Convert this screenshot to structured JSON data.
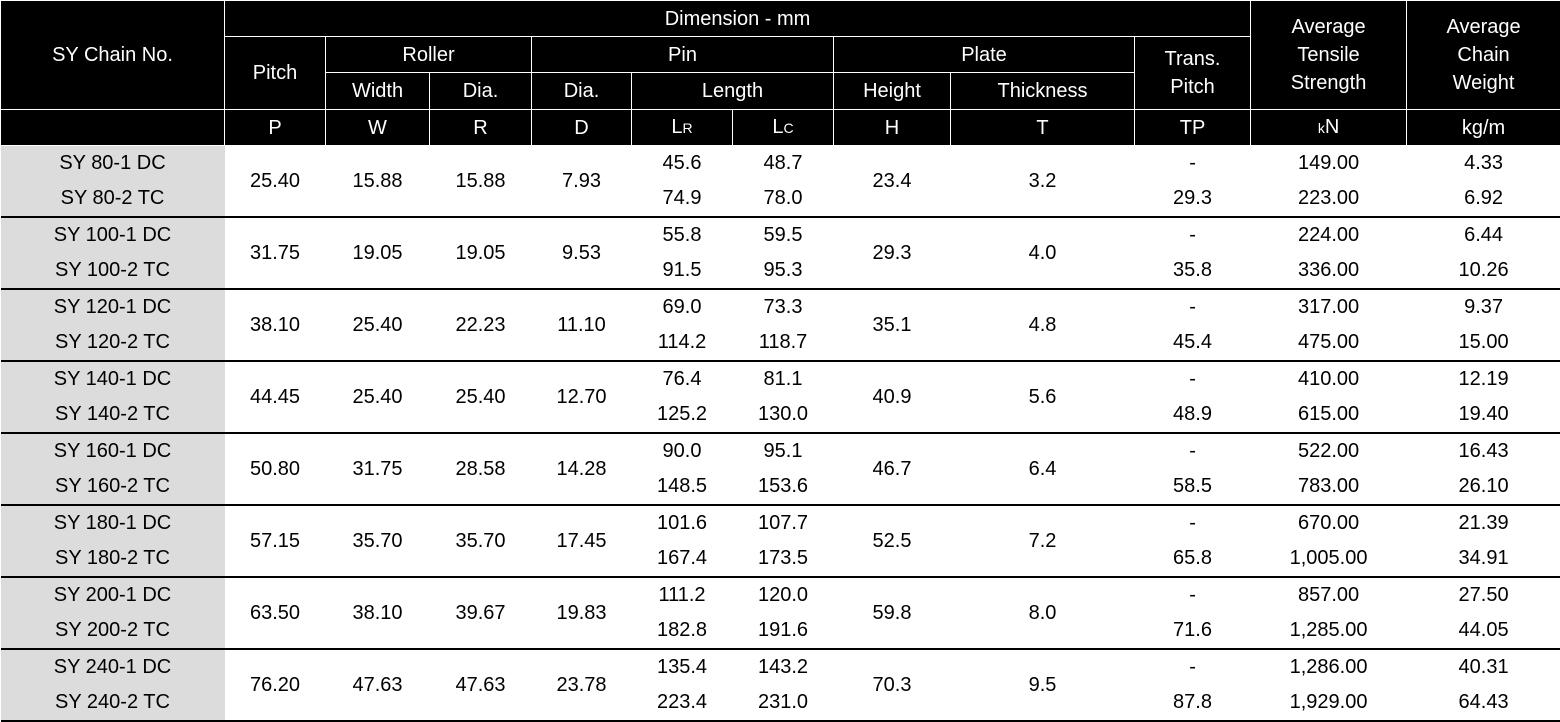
{
  "header": {
    "chain_no": "SY Chain No.",
    "dimension": "Dimension - mm",
    "pitch": "Pitch",
    "roller": "Roller",
    "pin": "Pin",
    "plate": "Plate",
    "trans_pitch_line1": "Trans.",
    "trans_pitch_line2": "Pitch",
    "tensile_line1": "Average",
    "tensile_line2": "Tensile",
    "tensile_line3": "Strength",
    "weight_line1": "Average",
    "weight_line2": "Chain",
    "weight_line3": "Weight",
    "roller_width": "Width",
    "roller_dia": "Dia.",
    "pin_dia": "Dia.",
    "pin_length": "Length",
    "plate_height": "Height",
    "plate_thickness": "Thickness",
    "sym_p": "P",
    "sym_w": "W",
    "sym_r": "R",
    "sym_d": "D",
    "sym_lr_main": "L",
    "sym_lr_sub": "R",
    "sym_lc_main": "L",
    "sym_lc_sub": "C",
    "sym_h": "H",
    "sym_t": "T",
    "sym_tp": "TP",
    "unit_kn_k": "k",
    "unit_kn_n": "N",
    "unit_weight": "kg/m"
  },
  "rows": [
    {
      "dc": "SY 80-1 DC",
      "tc": "SY 80-2 TC",
      "p": "25.40",
      "w": "15.88",
      "r": "15.88",
      "d": "7.93",
      "lr1": "45.6",
      "lc1": "48.7",
      "lr2": "74.9",
      "lc2": "78.0",
      "h": "23.4",
      "t": "3.2",
      "tp1": "-",
      "tp2": "29.3",
      "ts1": "149.00",
      "ts2": "223.00",
      "wt1": "4.33",
      "wt2": "6.92"
    },
    {
      "dc": "SY 100-1 DC",
      "tc": "SY 100-2 TC",
      "p": "31.75",
      "w": "19.05",
      "r": "19.05",
      "d": "9.53",
      "lr1": "55.8",
      "lc1": "59.5",
      "lr2": "91.5",
      "lc2": "95.3",
      "h": "29.3",
      "t": "4.0",
      "tp1": "-",
      "tp2": "35.8",
      "ts1": "224.00",
      "ts2": "336.00",
      "wt1": "6.44",
      "wt2": "10.26"
    },
    {
      "dc": "SY 120-1 DC",
      "tc": "SY 120-2 TC",
      "p": "38.10",
      "w": "25.40",
      "r": "22.23",
      "d": "11.10",
      "lr1": "69.0",
      "lc1": "73.3",
      "lr2": "114.2",
      "lc2": "118.7",
      "h": "35.1",
      "t": "4.8",
      "tp1": "-",
      "tp2": "45.4",
      "ts1": "317.00",
      "ts2": "475.00",
      "wt1": "9.37",
      "wt2": "15.00"
    },
    {
      "dc": "SY 140-1 DC",
      "tc": "SY 140-2 TC",
      "p": "44.45",
      "w": "25.40",
      "r": "25.40",
      "d": "12.70",
      "lr1": "76.4",
      "lc1": "81.1",
      "lr2": "125.2",
      "lc2": "130.0",
      "h": "40.9",
      "t": "5.6",
      "tp1": "-",
      "tp2": "48.9",
      "ts1": "410.00",
      "ts2": "615.00",
      "wt1": "12.19",
      "wt2": "19.40"
    },
    {
      "dc": "SY 160-1 DC",
      "tc": "SY 160-2 TC",
      "p": "50.80",
      "w": "31.75",
      "r": "28.58",
      "d": "14.28",
      "lr1": "90.0",
      "lc1": "95.1",
      "lr2": "148.5",
      "lc2": "153.6",
      "h": "46.7",
      "t": "6.4",
      "tp1": "-",
      "tp2": "58.5",
      "ts1": "522.00",
      "ts2": "783.00",
      "wt1": "16.43",
      "wt2": "26.10"
    },
    {
      "dc": "SY 180-1 DC",
      "tc": "SY 180-2 TC",
      "p": "57.15",
      "w": "35.70",
      "r": "35.70",
      "d": "17.45",
      "lr1": "101.6",
      "lc1": "107.7",
      "lr2": "167.4",
      "lc2": "173.5",
      "h": "52.5",
      "t": "7.2",
      "tp1": "-",
      "tp2": "65.8",
      "ts1": "670.00",
      "ts2": "1,005.00",
      "wt1": "21.39",
      "wt2": "34.91"
    },
    {
      "dc": "SY 200-1 DC",
      "tc": "SY 200-2 TC",
      "p": "63.50",
      "w": "38.10",
      "r": "39.67",
      "d": "19.83",
      "lr1": "111.2",
      "lc1": "120.0",
      "lr2": "182.8",
      "lc2": "191.6",
      "h": "59.8",
      "t": "8.0",
      "tp1": "-",
      "tp2": "71.6",
      "ts1": "857.00",
      "ts2": "1,285.00",
      "wt1": "27.50",
      "wt2": "44.05"
    },
    {
      "dc": "SY 240-1 DC",
      "tc": "SY 240-2 TC",
      "p": "76.20",
      "w": "47.63",
      "r": "47.63",
      "d": "23.78",
      "lr1": "135.4",
      "lc1": "143.2",
      "lr2": "223.4",
      "lc2": "231.0",
      "h": "70.3",
      "t": "9.5",
      "tp1": "-",
      "tp2": "87.8",
      "ts1": "1,286.00",
      "ts2": "1,929.00",
      "wt1": "40.31",
      "wt2": "64.43"
    }
  ]
}
